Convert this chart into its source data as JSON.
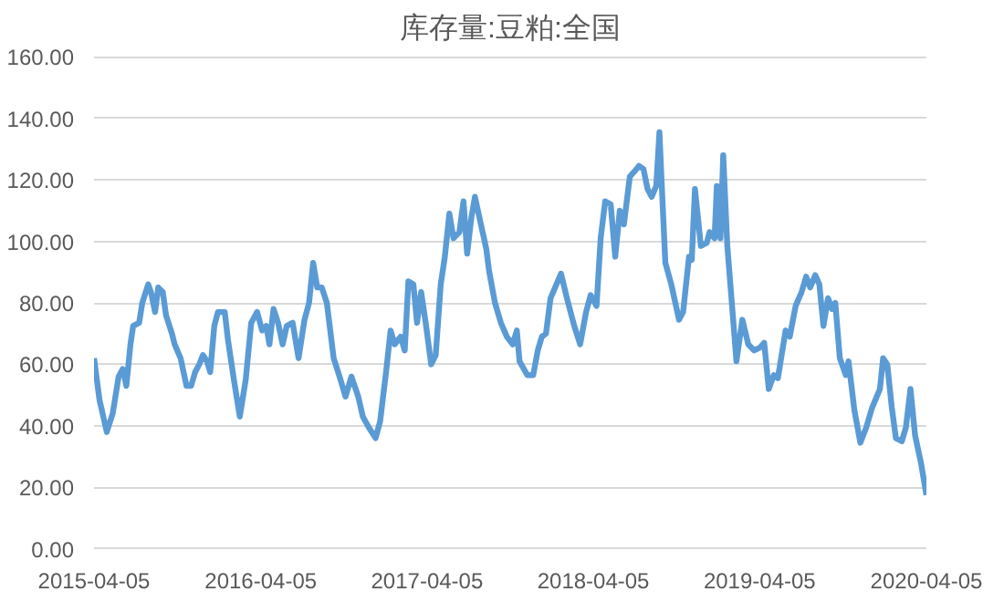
{
  "chart_data": {
    "type": "line",
    "title": "库存量:豆粕:全国",
    "x": [
      "2015-04-05",
      "2015-04-17",
      "2015-05-03",
      "2015-05-16",
      "2015-05-29",
      "2015-06-07",
      "2015-06-15",
      "2015-06-24",
      "2015-06-30",
      "2015-07-13",
      "2015-07-20",
      "2015-08-02",
      "2015-08-08",
      "2015-08-17",
      "2015-08-24",
      "2015-09-03",
      "2015-09-10",
      "2015-09-23",
      "2015-09-29",
      "2015-10-12",
      "2015-10-25",
      "2015-11-04",
      "2015-11-13",
      "2015-11-22",
      "2015-11-30",
      "2015-12-09",
      "2015-12-16",
      "2015-12-25",
      "2016-01-02",
      "2016-01-17",
      "2016-01-24",
      "2016-02-06",
      "2016-02-19",
      "2016-03-03",
      "2016-03-15",
      "2016-03-28",
      "2016-04-08",
      "2016-04-17",
      "2016-04-24",
      "2016-05-03",
      "2016-05-13",
      "2016-05-23",
      "2016-06-01",
      "2016-06-14",
      "2016-06-27",
      "2016-07-10",
      "2016-07-20",
      "2016-07-29",
      "2016-08-07",
      "2016-08-17",
      "2016-08-28",
      "2016-09-12",
      "2016-09-25",
      "2016-10-08",
      "2016-10-21",
      "2016-11-05",
      "2016-11-15",
      "2016-11-28",
      "2016-12-13",
      "2016-12-23",
      "2017-01-05",
      "2017-01-15",
      "2017-01-24",
      "2017-02-06",
      "2017-02-15",
      "2017-02-23",
      "2017-03-06",
      "2017-03-14",
      "2017-03-23",
      "2017-04-02",
      "2017-04-14",
      "2017-04-24",
      "2017-05-05",
      "2017-05-14",
      "2017-05-24",
      "2017-06-02",
      "2017-06-15",
      "2017-06-24",
      "2017-07-02",
      "2017-07-11",
      "2017-07-19",
      "2017-08-13",
      "2017-08-19",
      "2017-09-01",
      "2017-09-14",
      "2017-09-27",
      "2017-10-10",
      "2017-10-19",
      "2017-10-25",
      "2017-11-11",
      "2017-11-24",
      "2017-12-04",
      "2017-12-13",
      "2017-12-22",
      "2018-01-01",
      "2018-01-14",
      "2018-01-24",
      "2018-02-06",
      "2018-02-22",
      "2018-03-07",
      "2018-03-20",
      "2018-03-30",
      "2018-04-12",
      "2018-04-21",
      "2018-05-01",
      "2018-05-13",
      "2018-05-23",
      "2018-06-02",
      "2018-06-11",
      "2018-06-24",
      "2018-07-03",
      "2018-07-14",
      "2018-07-24",
      "2018-08-02",
      "2018-08-11",
      "2018-08-21",
      "2018-08-28",
      "2018-09-03",
      "2018-09-10",
      "2018-09-23",
      "2018-10-10",
      "2018-10-19",
      "2018-11-01",
      "2018-11-07",
      "2018-11-14",
      "2018-11-27",
      "2018-12-10",
      "2018-12-16",
      "2018-12-27",
      "2019-01-01",
      "2019-01-09",
      "2019-01-15",
      "2019-01-24",
      "2019-02-04",
      "2019-02-13",
      "2019-02-26",
      "2019-03-11",
      "2019-03-24",
      "2019-04-06",
      "2019-04-15",
      "2019-04-25",
      "2019-05-06",
      "2019-05-15",
      "2019-06-01",
      "2019-06-10",
      "2019-06-23",
      "2019-07-06",
      "2019-07-16",
      "2019-07-25",
      "2019-08-05",
      "2019-08-14",
      "2019-08-23",
      "2019-09-02",
      "2019-09-11",
      "2019-09-18",
      "2019-09-28",
      "2019-10-11",
      "2019-10-17",
      "2019-10-30",
      "2019-11-12",
      "2019-11-25",
      "2019-12-08",
      "2019-12-25",
      "2020-01-01",
      "2020-01-10",
      "2020-01-20",
      "2020-01-29",
      "2020-02-11",
      "2020-02-20",
      "2020-03-01",
      "2020-03-11",
      "2020-03-24",
      "2020-04-05"
    ],
    "series": [
      {
        "color": "#5b9bd5",
        "values": [
          62,
          48.5,
          38,
          44,
          56,
          58.5,
          53,
          66.5,
          72.5,
          73.5,
          80,
          86,
          83.5,
          77,
          85,
          83.5,
          76,
          70,
          66.5,
          62,
          53,
          53,
          57.5,
          60,
          63,
          61,
          57.5,
          72.5,
          77,
          77,
          68,
          55,
          43,
          55,
          73.5,
          77,
          71,
          72.5,
          66.5,
          78,
          73.5,
          66.5,
          72.5,
          73.5,
          62,
          74.5,
          80,
          93,
          85,
          85,
          80,
          62,
          56,
          49.5,
          56,
          49.5,
          43,
          39.5,
          36,
          41.5,
          57.5,
          71,
          66.5,
          69,
          64.5,
          87,
          86,
          73.5,
          83.5,
          73.5,
          60,
          63,
          86,
          95,
          109,
          101,
          103,
          113,
          96,
          107.5,
          114.5,
          97.5,
          90.5,
          80,
          73.5,
          69,
          66.5,
          71,
          61,
          56.5,
          56.5,
          64.5,
          69,
          70,
          81.5,
          86,
          89.5,
          81.5,
          72.5,
          66.5,
          77,
          82.5,
          79,
          101,
          113,
          112,
          95,
          110,
          105.5,
          121,
          122.5,
          124.5,
          123.5,
          117,
          114.5,
          118,
          135.5,
          115.5,
          93,
          86,
          74.5,
          77,
          95,
          94,
          117,
          98.5,
          99.5,
          103,
          101,
          118,
          101,
          128,
          98.5,
          78,
          61,
          74.5,
          66.5,
          64.5,
          65.5,
          67,
          52,
          56.5,
          55.5,
          71,
          69,
          79,
          83.5,
          88.5,
          85,
          89,
          86,
          72.5,
          81.5,
          78,
          80,
          62,
          56.5,
          61,
          45,
          34.5,
          39.5,
          46,
          52,
          62,
          60,
          46,
          36,
          35,
          39.5,
          52,
          37,
          28,
          17.5
        ]
      }
    ],
    "xlim": [
      "2015-04-05",
      "2020-04-05"
    ],
    "xticks": [
      "2015-04-05",
      "2016-04-05",
      "2017-04-05",
      "2018-04-05",
      "2019-04-05",
      "2020-04-05"
    ],
    "ylim": [
      0,
      160
    ],
    "yticks": [
      {
        "value": 0,
        "label": "0.00"
      },
      {
        "value": 20,
        "label": "20.00"
      },
      {
        "value": 40,
        "label": "40.00"
      },
      {
        "value": 60,
        "label": "60.00"
      },
      {
        "value": 80,
        "label": "80.00"
      },
      {
        "value": 100,
        "label": "100.00"
      },
      {
        "value": 120,
        "label": "120.00"
      },
      {
        "value": 140,
        "label": "140.00"
      },
      {
        "value": 160,
        "label": "160.00"
      }
    ],
    "grid": "y",
    "marker": "none",
    "line_style": "solid"
  }
}
